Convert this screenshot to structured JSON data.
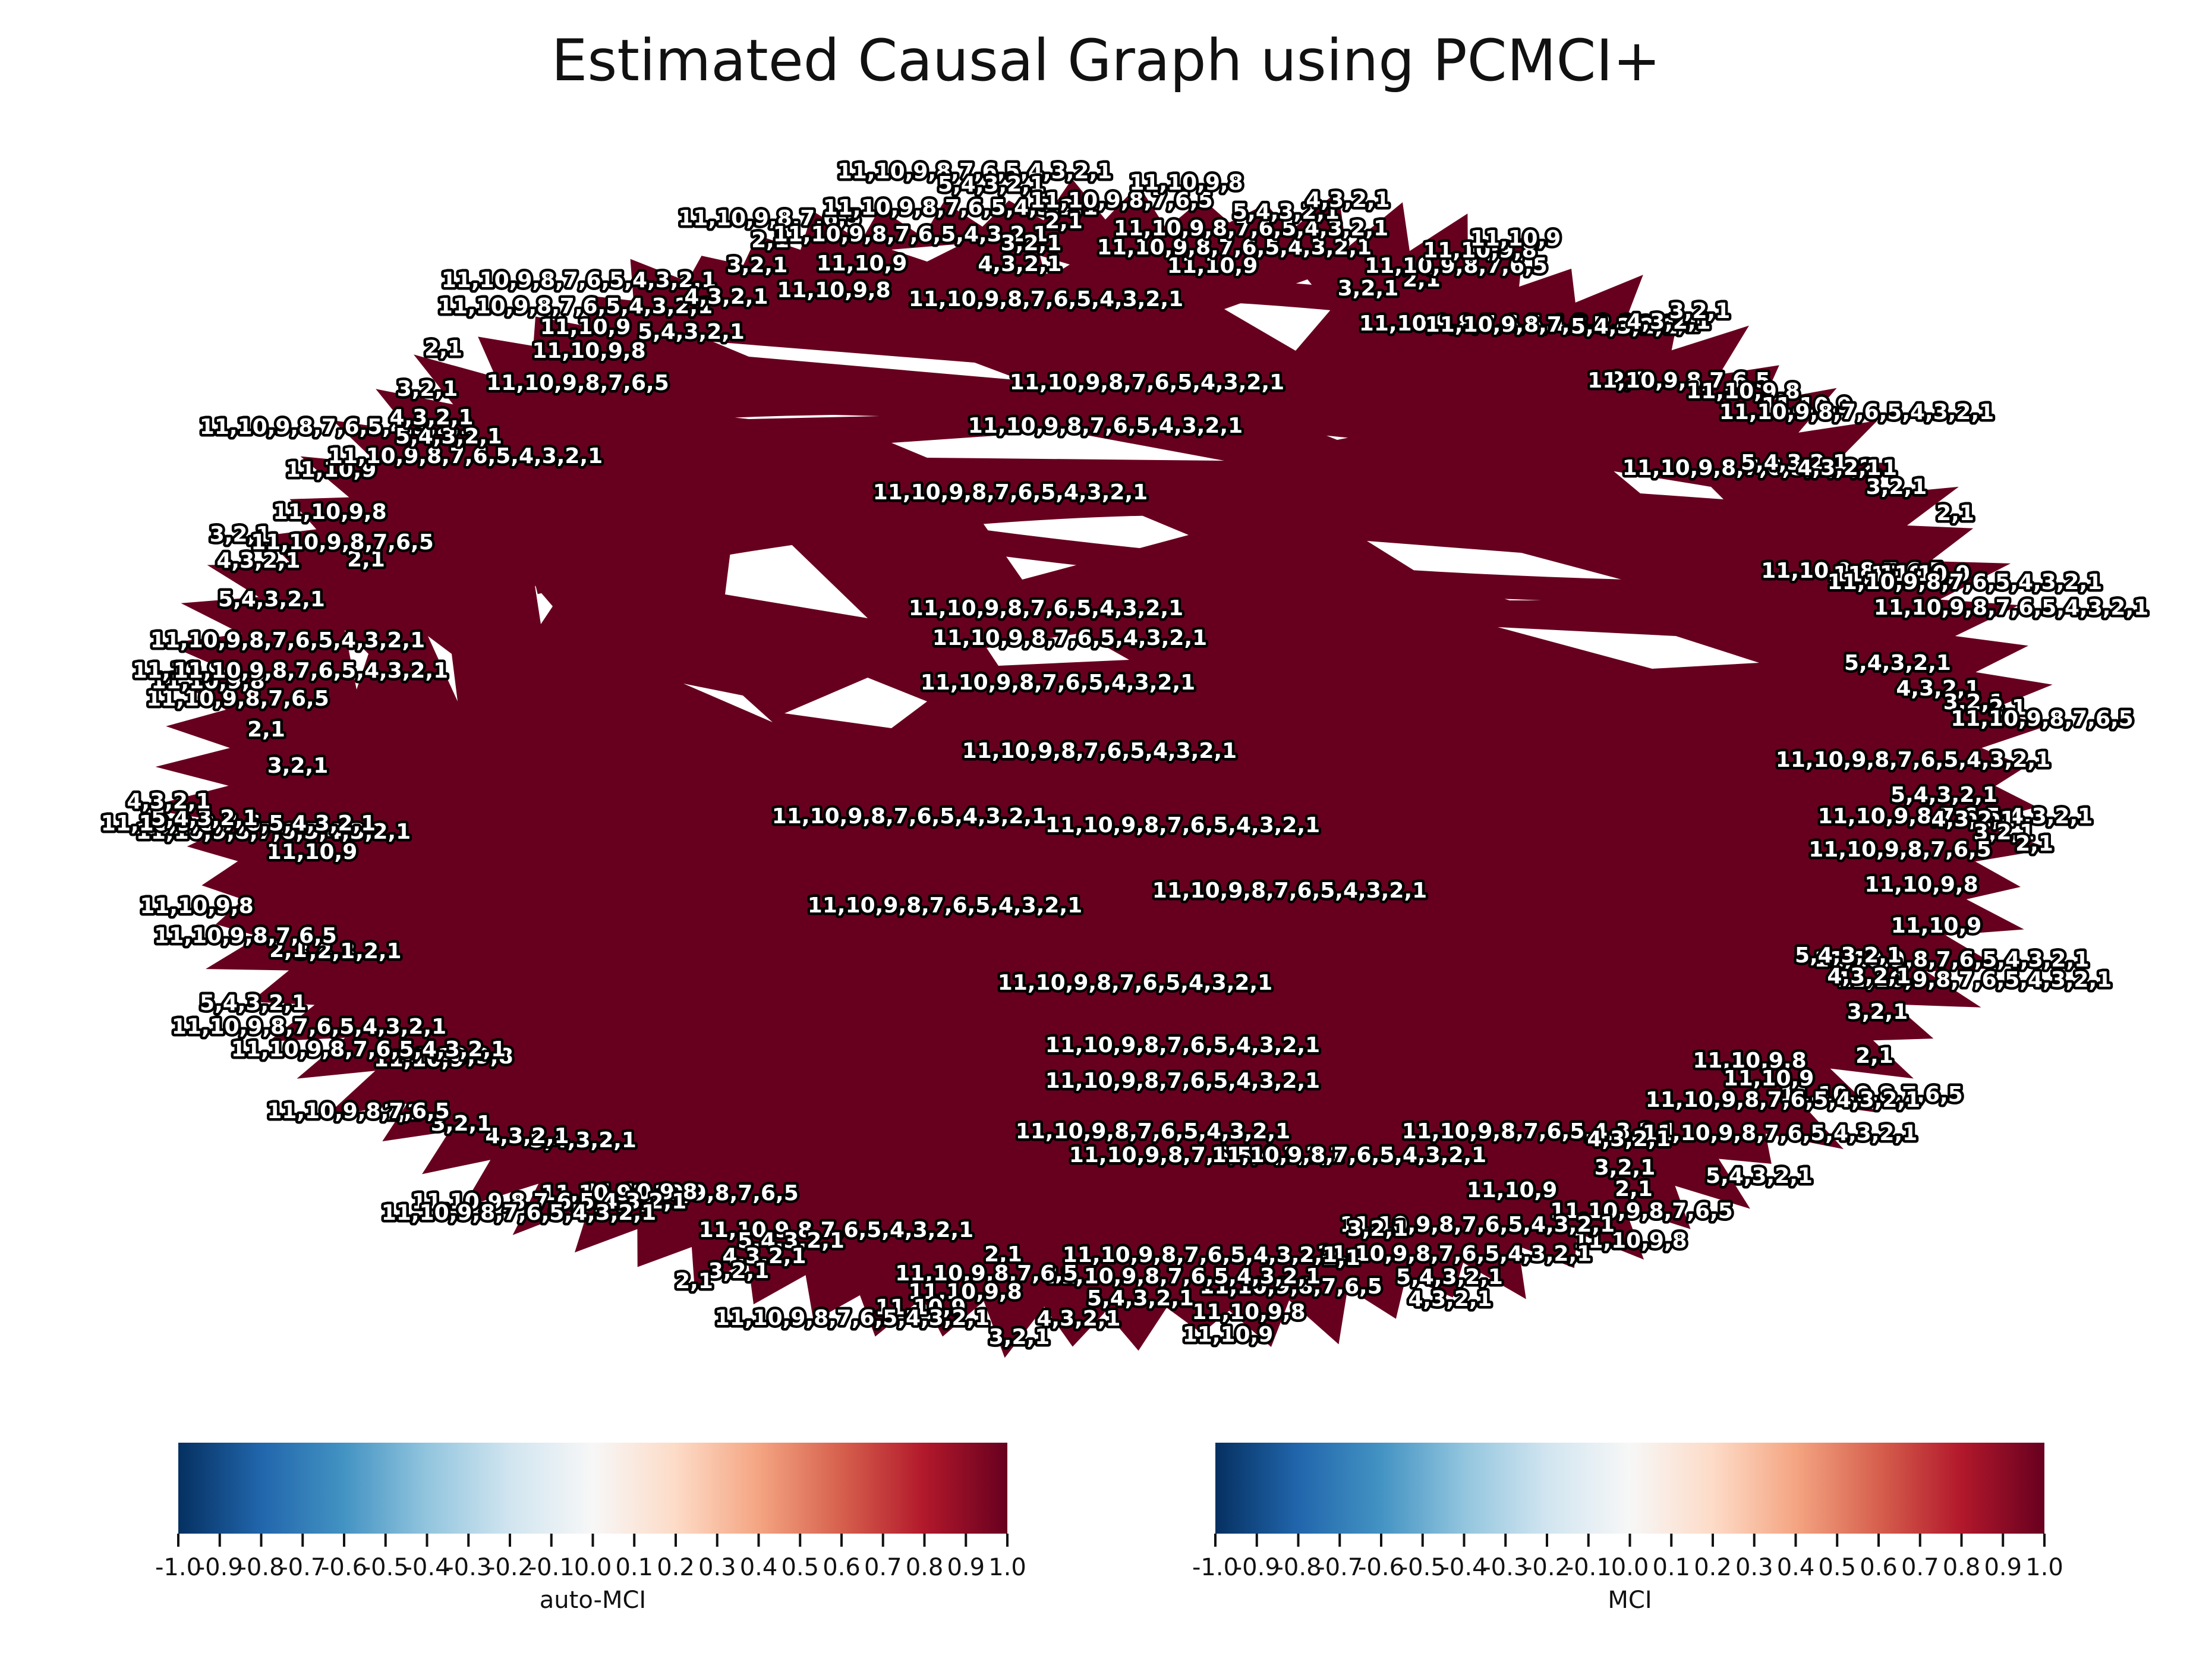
{
  "title": "Estimated Causal Graph using PCMCI+",
  "graph": {
    "edge_color": "#67001f",
    "edge_label_text": "11,10,9,8,7,6,5,4,3,2,1",
    "edge_label_partials": [
      "11,10,9,8,7,6,5,4,3,2,1",
      "5,4,3,2,1",
      "4,3,2,1",
      "3,2,1",
      "2,1",
      "11,10,9,8,7,6,5",
      "11,10,9,8",
      "11,10,9",
      "11,10,9,8,7,6,5,4,3,2,1"
    ]
  },
  "colorbars": [
    {
      "label": "auto-MCI",
      "colormap": "RdBu_r",
      "ticks": [
        "-1.0",
        "-0.9",
        "-0.8",
        "-0.7",
        "-0.6",
        "-0.5",
        "-0.4",
        "-0.3",
        "-0.2",
        "-0.1",
        "0.0",
        "0.1",
        "0.2",
        "0.3",
        "0.4",
        "0.5",
        "0.6",
        "0.7",
        "0.8",
        "0.9",
        "1.0"
      ]
    },
    {
      "label": "MCI",
      "colormap": "RdBu_r",
      "ticks": [
        "-1.0",
        "-0.9",
        "-0.8",
        "-0.7",
        "-0.6",
        "-0.5",
        "-0.4",
        "-0.3",
        "-0.2",
        "-0.1",
        "0.0",
        "0.1",
        "0.2",
        "0.3",
        "0.4",
        "0.5",
        "0.6",
        "0.7",
        "0.8",
        "0.9",
        "1.0"
      ]
    }
  ]
}
